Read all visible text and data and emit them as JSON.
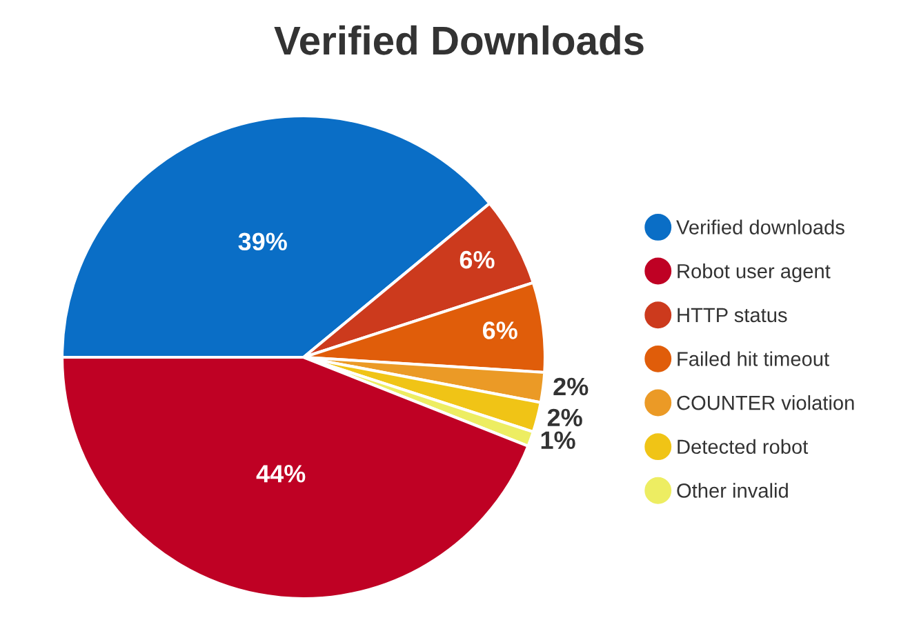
{
  "chart_data": {
    "type": "pie",
    "title": "Verified Downloads",
    "categories": [
      "Verified downloads",
      "Robot user agent",
      "HTTP status",
      "Failed hit timeout",
      "COUNTER violation",
      "Detected robot",
      "Other invalid"
    ],
    "values": [
      39,
      44,
      6,
      6,
      2,
      2,
      1
    ],
    "colors": [
      "#0a6ec6",
      "#bf0124",
      "#cc3a1d",
      "#e05d0a",
      "#eb9a26",
      "#f0c416",
      "#eded62"
    ],
    "value_labels": [
      "39%",
      "44%",
      "6%",
      "6%",
      "2%",
      "2%",
      "1%"
    ],
    "legend": "right"
  }
}
